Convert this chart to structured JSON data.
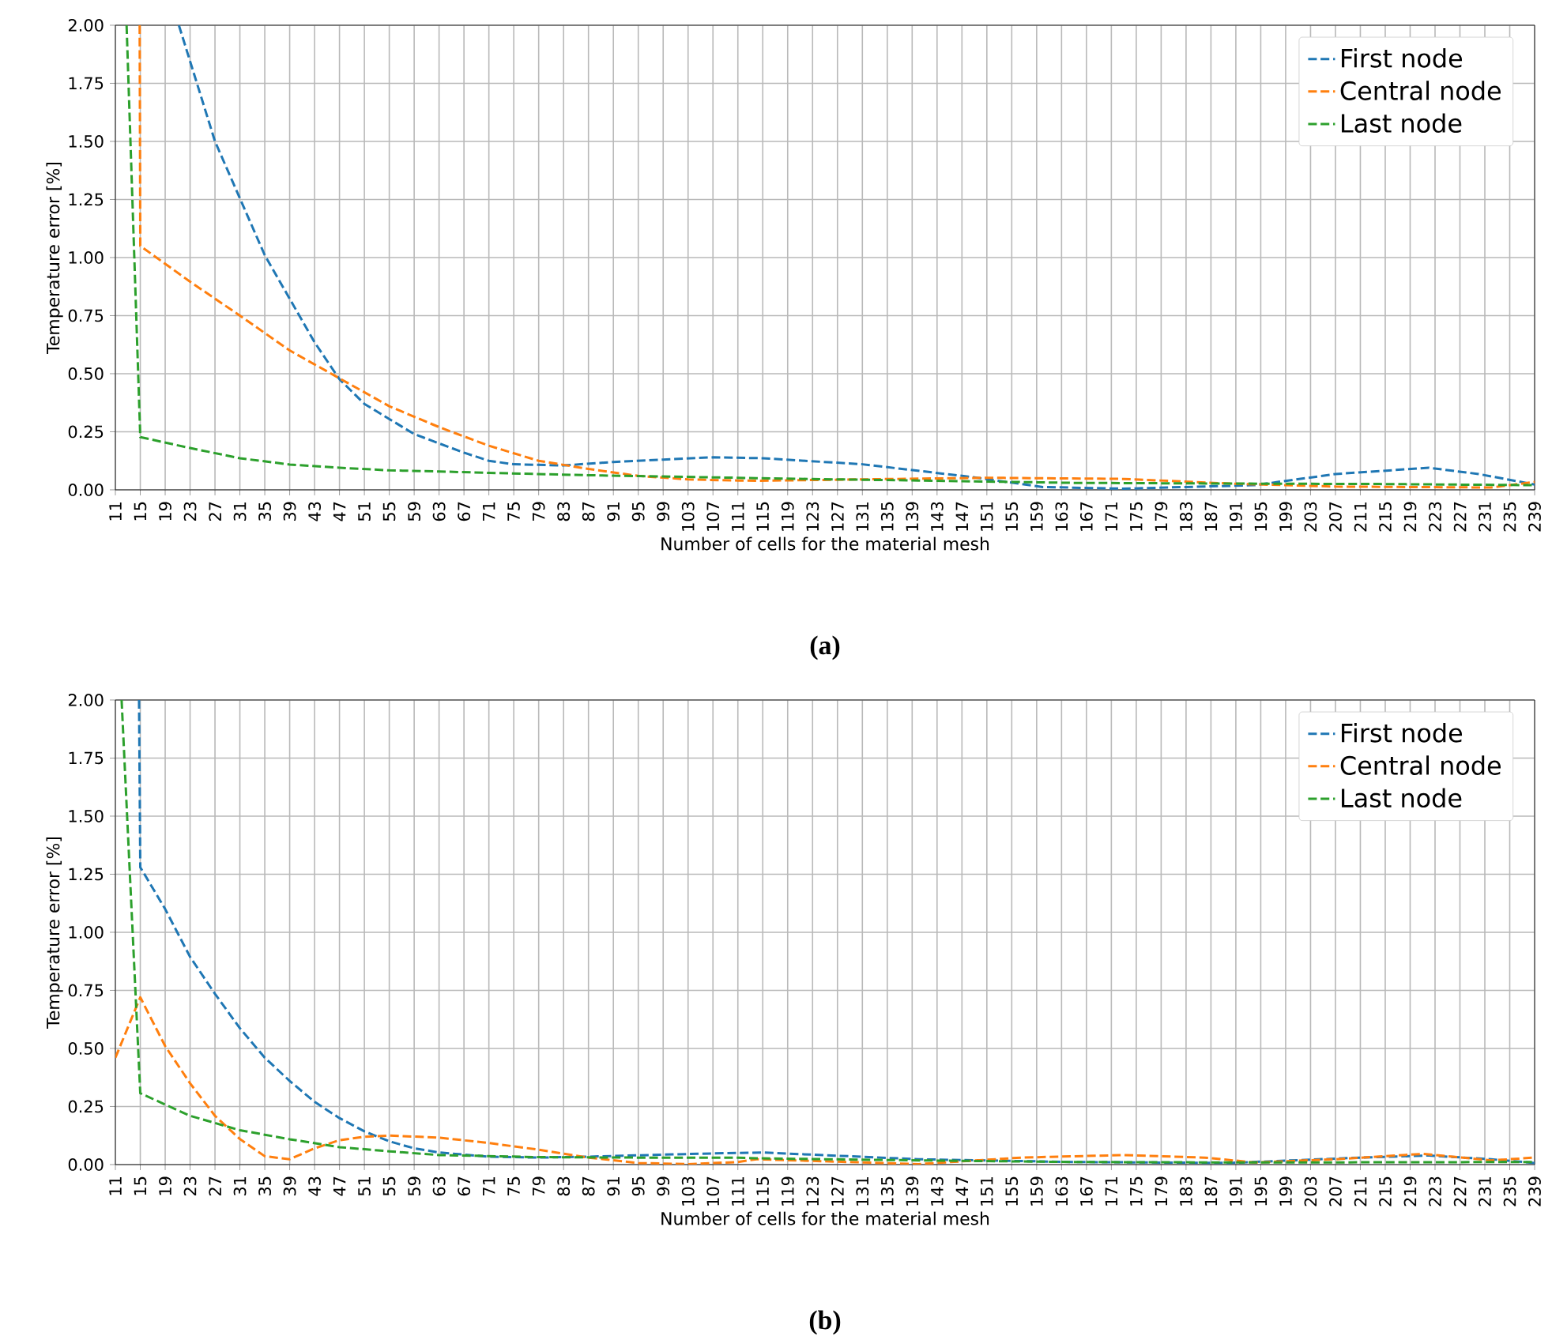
{
  "chart_data": [
    {
      "type": "line",
      "xlabel": "Number of cells for the material mesh",
      "ylabel": "Temperature error [%]",
      "xlim": [
        11,
        239
      ],
      "xticks": [
        11,
        15,
        19,
        23,
        27,
        31,
        35,
        39,
        43,
        47,
        51,
        55,
        59,
        63,
        67,
        71,
        75,
        79,
        83,
        87,
        91,
        95,
        99,
        103,
        107,
        111,
        115,
        119,
        123,
        127,
        131,
        135,
        139,
        143,
        147,
        151,
        155,
        159,
        163,
        167,
        171,
        175,
        179,
        183,
        187,
        191,
        195,
        199,
        203,
        207,
        211,
        215,
        219,
        223,
        227,
        231,
        235,
        239
      ],
      "ylim": [
        0,
        2
      ],
      "yticks": [
        {
          "value": 0,
          "label": "0.00"
        },
        {
          "value": 0.25,
          "label": "0.25"
        },
        {
          "value": 0.5,
          "label": "0.50"
        },
        {
          "value": 0.75,
          "label": "0.75"
        },
        {
          "value": 1,
          "label": "1.00"
        },
        {
          "value": 1.25,
          "label": "1.25"
        },
        {
          "value": 1.5,
          "label": "1.50"
        },
        {
          "value": 1.75,
          "label": "1.75"
        },
        {
          "value": 2,
          "label": "2.00"
        }
      ],
      "grid": true,
      "legend": "top right",
      "line_style": "dashed",
      "annotations": [
        "(a)"
      ],
      "series": [
        {
          "name": "First node",
          "color": "#1f77b4",
          "x": [
            21.2,
            27,
            35,
            43,
            47,
            51,
            59,
            67,
            71,
            75,
            83,
            91,
            99,
            107,
            115,
            131,
            148,
            160,
            173,
            194,
            207,
            222,
            230,
            239
          ],
          "values": [
            2.0,
            1.5,
            1.01,
            0.635,
            0.476,
            0.37,
            0.24,
            0.16,
            0.125,
            0.11,
            0.105,
            0.12,
            0.13,
            0.14,
            0.136,
            0.11,
            0.057,
            0.012,
            0.005,
            0.02,
            0.068,
            0.095,
            0.068,
            0.023
          ]
        },
        {
          "name": "Central node",
          "color": "#ff7f0e",
          "x": [
            14.9,
            15,
            23,
            31,
            39,
            47,
            55,
            63,
            71,
            79,
            87,
            95,
            103,
            111,
            114,
            151,
            173,
            190,
            207,
            232,
            239
          ],
          "values": [
            2.0,
            1.05,
            0.896,
            0.75,
            0.6,
            0.48,
            0.36,
            0.27,
            0.19,
            0.125,
            0.09,
            0.06,
            0.045,
            0.04,
            0.039,
            0.052,
            0.047,
            0.027,
            0.014,
            0.01,
            0.034
          ]
        },
        {
          "name": "Last node",
          "color": "#2ca02c",
          "x": [
            12.8,
            15,
            23,
            31,
            39,
            47,
            55,
            63,
            71,
            79,
            87,
            95,
            111,
            114,
            140,
            165,
            190,
            214,
            239
          ],
          "values": [
            2.0,
            0.227,
            0.18,
            0.136,
            0.109,
            0.095,
            0.084,
            0.079,
            0.073,
            0.068,
            0.063,
            0.059,
            0.052,
            0.05,
            0.04,
            0.03,
            0.027,
            0.025,
            0.02
          ]
        }
      ]
    },
    {
      "type": "line",
      "xlabel": "Number of cells for the material mesh",
      "ylabel": "Temperature error [%]",
      "xlim": [
        11,
        239
      ],
      "xticks": [
        11,
        15,
        19,
        23,
        27,
        31,
        35,
        39,
        43,
        47,
        51,
        55,
        59,
        63,
        67,
        71,
        75,
        79,
        83,
        87,
        91,
        95,
        99,
        103,
        107,
        111,
        115,
        119,
        123,
        127,
        131,
        135,
        139,
        143,
        147,
        151,
        155,
        159,
        163,
        167,
        171,
        175,
        179,
        183,
        187,
        191,
        195,
        199,
        203,
        207,
        211,
        215,
        219,
        223,
        227,
        231,
        235,
        239
      ],
      "ylim": [
        0,
        2
      ],
      "yticks": [
        {
          "value": 0,
          "label": "0.00"
        },
        {
          "value": 0.25,
          "label": "0.25"
        },
        {
          "value": 0.5,
          "label": "0.50"
        },
        {
          "value": 0.75,
          "label": "0.75"
        },
        {
          "value": 1,
          "label": "1.00"
        },
        {
          "value": 1.25,
          "label": "1.25"
        },
        {
          "value": 1.5,
          "label": "1.50"
        },
        {
          "value": 1.75,
          "label": "1.75"
        },
        {
          "value": 2,
          "label": "2.00"
        }
      ],
      "grid": true,
      "legend": "top right",
      "line_style": "dashed",
      "annotations": [
        "(b)"
      ],
      "series": [
        {
          "name": "First node",
          "color": "#1f77b4",
          "x": [
            14.8,
            15,
            19,
            23,
            27,
            31,
            35,
            39,
            43,
            47,
            51,
            55,
            59,
            63,
            71,
            79,
            87,
            95,
            107,
            115,
            140,
            165,
            190,
            211,
            222,
            232,
            239
          ],
          "values": [
            2.0,
            1.28,
            1.1,
            0.894,
            0.735,
            0.587,
            0.46,
            0.36,
            0.27,
            0.2,
            0.143,
            0.1,
            0.07,
            0.052,
            0.034,
            0.03,
            0.034,
            0.04,
            0.048,
            0.052,
            0.023,
            0.011,
            0.007,
            0.03,
            0.039,
            0.023,
            0.007
          ]
        },
        {
          "name": "Central node",
          "color": "#ff7f0e",
          "x": [
            11,
            15,
            19,
            23,
            27,
            31,
            35,
            39,
            43,
            47,
            51,
            55,
            63,
            71,
            79,
            87,
            95,
            103,
            111,
            114,
            140,
            156.5,
            173,
            186,
            194,
            207,
            221,
            232,
            239
          ],
          "values": [
            0.46,
            0.72,
            0.51,
            0.35,
            0.21,
            0.11,
            0.036,
            0.023,
            0.07,
            0.105,
            0.12,
            0.125,
            0.116,
            0.093,
            0.064,
            0.03,
            0.007,
            0.002,
            0.011,
            0.023,
            0.002,
            0.03,
            0.041,
            0.03,
            0.009,
            0.023,
            0.046,
            0.018,
            0.03
          ]
        },
        {
          "name": "Last node",
          "color": "#2ca02c",
          "x": [
            12.0,
            15,
            23,
            31,
            39,
            47,
            55,
            63,
            79,
            95,
            111,
            114,
            140,
            165,
            194,
            239
          ],
          "values": [
            2.0,
            0.307,
            0.21,
            0.148,
            0.109,
            0.075,
            0.057,
            0.041,
            0.032,
            0.03,
            0.03,
            0.027,
            0.018,
            0.011,
            0.009,
            0.011
          ]
        }
      ]
    }
  ]
}
